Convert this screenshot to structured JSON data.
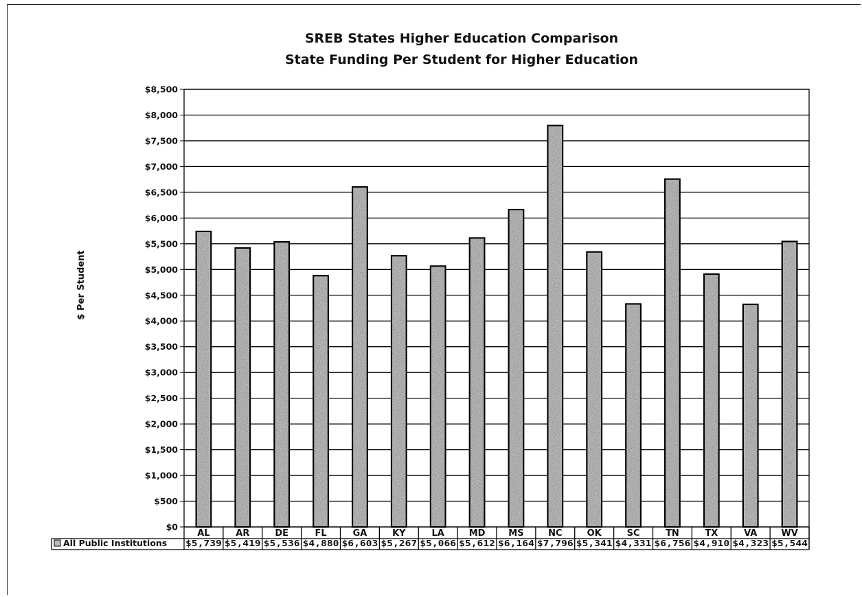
{
  "chart_data": {
    "type": "bar",
    "title_lines": [
      "SREB States Higher Education Comparison",
      "State Funding Per Student for Higher Education"
    ],
    "ylabel": "$ Per Student",
    "xlabel": "",
    "ylim": [
      0,
      8500
    ],
    "y_tick_step": 500,
    "y_tick_labels": [
      "$0",
      "$500",
      "$1,000",
      "$1,500",
      "$2,000",
      "$2,500",
      "$3,000",
      "$3,500",
      "$4,000",
      "$4,500",
      "$5,000",
      "$5,500",
      "$6,000",
      "$6,500",
      "$7,000",
      "$7,500",
      "$8,000",
      "$8,500"
    ],
    "grid": true,
    "categories": [
      "AL",
      "AR",
      "DE",
      "FL",
      "GA",
      "KY",
      "LA",
      "MD",
      "MS",
      "NC",
      "OK",
      "SC",
      "TN",
      "TX",
      "VA",
      "WV"
    ],
    "series": [
      {
        "name": "All Public Institutions",
        "values": [
          5739,
          5419,
          5536,
          4880,
          6603,
          5267,
          5066,
          5612,
          6164,
          7796,
          5341,
          4331,
          6756,
          4910,
          4323,
          5544
        ],
        "value_labels": [
          "$5,739",
          "$5,419",
          "$5,536",
          "$4,880",
          "$6,603",
          "$5,267",
          "$5,066",
          "$5,612",
          "$6,164",
          "$7,796",
          "$5,341",
          "$4,331",
          "$6,756",
          "$4,910",
          "$4,323",
          "$5,544"
        ]
      }
    ],
    "data_table": true,
    "bar_pattern": "speckled-gray"
  }
}
